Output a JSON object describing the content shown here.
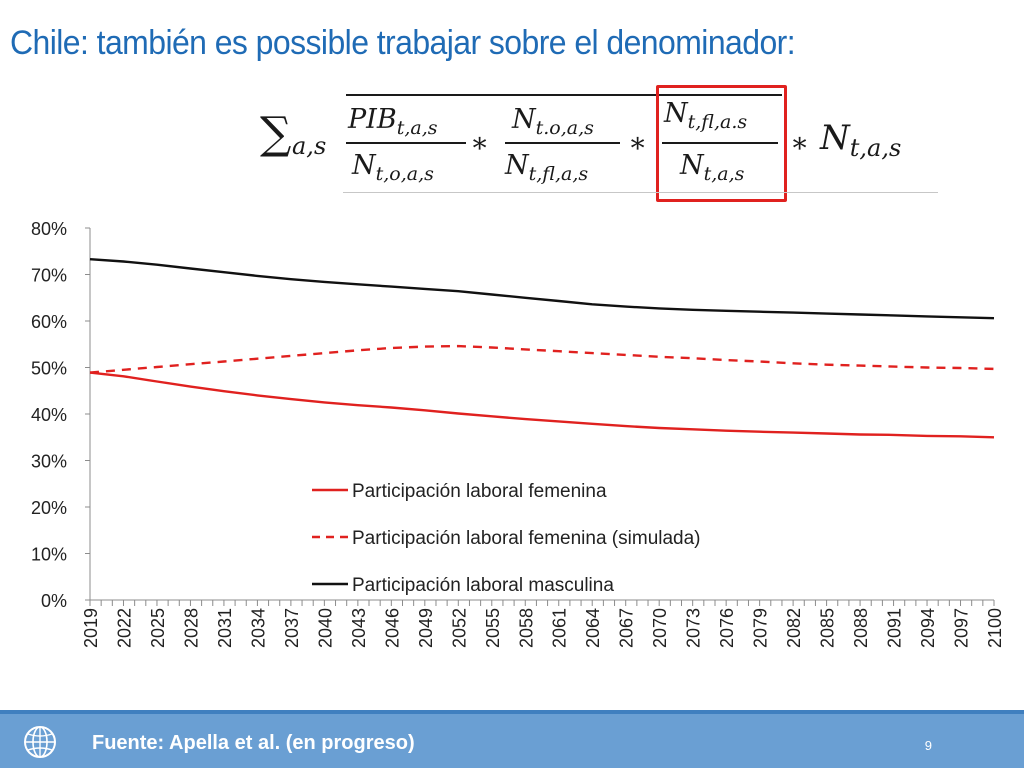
{
  "slide": {
    "title": "Chile: también es possible trabajar sobre el denominador:"
  },
  "formula": {
    "sigma": "∑",
    "sum_subscript": "a,s",
    "frac1_num_main": "PIB",
    "frac1_num_sub": "t,a,s",
    "frac1_den_main": "N",
    "frac1_den_sub": "t,o,a,s",
    "times": "∗",
    "frac2_num_main": "N",
    "frac2_num_sub": "t.o,a,s",
    "frac2_den_main": "N",
    "frac2_den_sub": "t,fl,a,s",
    "frac3_num_main": "N",
    "frac3_num_sub": "t,fl,a.s",
    "frac3_den_main": "N",
    "frac3_den_sub": "t,a,s",
    "last_main": "N",
    "last_sub": "t,a,s"
  },
  "chart_data": {
    "type": "line",
    "title": "",
    "xlabel": "",
    "ylabel": "",
    "x": [
      2019,
      2020,
      2021,
      2022,
      2023,
      2024,
      2025,
      2026,
      2027,
      2028,
      2029,
      2030,
      2031,
      2032,
      2033,
      2034,
      2035,
      2036,
      2037,
      2038,
      2039,
      2040,
      2041,
      2042,
      2043,
      2044,
      2045,
      2046,
      2047,
      2048,
      2049,
      2050,
      2051,
      2052,
      2053,
      2054,
      2055,
      2056,
      2057,
      2058,
      2059,
      2060,
      2061,
      2062,
      2063,
      2064,
      2065,
      2066,
      2067,
      2068,
      2069,
      2070,
      2071,
      2072,
      2073,
      2074,
      2075,
      2076,
      2077,
      2078,
      2079,
      2080,
      2081,
      2082,
      2083,
      2084,
      2085,
      2086,
      2087,
      2088,
      2089,
      2090,
      2091,
      2092,
      2093,
      2094,
      2095,
      2096,
      2097,
      2098,
      2099,
      2100
    ],
    "tick_labels": [
      "2019",
      "2022",
      "2025",
      "2028",
      "2031",
      "2034",
      "2037",
      "2040",
      "2043",
      "2046",
      "2049",
      "2052",
      "2055",
      "2058",
      "2061",
      "2064",
      "2067",
      "2070",
      "2073",
      "2076",
      "2079",
      "2082",
      "2085",
      "2088",
      "2091",
      "2094",
      "2097",
      "2100"
    ],
    "tick_years": [
      2019,
      2022,
      2025,
      2028,
      2031,
      2034,
      2037,
      2040,
      2043,
      2046,
      2049,
      2052,
      2055,
      2058,
      2061,
      2064,
      2067,
      2070,
      2073,
      2076,
      2079,
      2082,
      2085,
      2088,
      2091,
      2094,
      2097,
      2100
    ],
    "ylim": [
      0,
      0.8
    ],
    "yticks": [
      0,
      0.1,
      0.2,
      0.3,
      0.4,
      0.5,
      0.6,
      0.7,
      0.8
    ],
    "ytick_labels": [
      "0%",
      "10%",
      "20%",
      "30%",
      "40%",
      "50%",
      "60%",
      "70%",
      "80%"
    ],
    "grid": false,
    "legend_placement": "lower-center",
    "series": [
      {
        "name": "Participación laboral femenina",
        "color": "#e0211f",
        "style": "solid",
        "anchors": [
          [
            2019,
            0.489
          ],
          [
            2022,
            0.481
          ],
          [
            2025,
            0.47
          ],
          [
            2028,
            0.459
          ],
          [
            2031,
            0.449
          ],
          [
            2034,
            0.44
          ],
          [
            2037,
            0.432
          ],
          [
            2040,
            0.425
          ],
          [
            2043,
            0.419
          ],
          [
            2046,
            0.414
          ],
          [
            2049,
            0.408
          ],
          [
            2052,
            0.401
          ],
          [
            2055,
            0.395
          ],
          [
            2058,
            0.389
          ],
          [
            2061,
            0.384
          ],
          [
            2064,
            0.379
          ],
          [
            2067,
            0.374
          ],
          [
            2070,
            0.37
          ],
          [
            2073,
            0.367
          ],
          [
            2076,
            0.364
          ],
          [
            2079,
            0.362
          ],
          [
            2082,
            0.36
          ],
          [
            2085,
            0.358
          ],
          [
            2088,
            0.356
          ],
          [
            2091,
            0.355
          ],
          [
            2094,
            0.353
          ],
          [
            2097,
            0.352
          ],
          [
            2100,
            0.35
          ]
        ]
      },
      {
        "name": "Participación laboral femenina (simulada)",
        "color": "#e0211f",
        "style": "dashed",
        "anchors": [
          [
            2019,
            0.489
          ],
          [
            2022,
            0.495
          ],
          [
            2025,
            0.501
          ],
          [
            2028,
            0.507
          ],
          [
            2031,
            0.513
          ],
          [
            2034,
            0.519
          ],
          [
            2037,
            0.525
          ],
          [
            2040,
            0.531
          ],
          [
            2043,
            0.537
          ],
          [
            2046,
            0.542
          ],
          [
            2049,
            0.545
          ],
          [
            2052,
            0.546
          ],
          [
            2055,
            0.543
          ],
          [
            2058,
            0.539
          ],
          [
            2061,
            0.535
          ],
          [
            2064,
            0.531
          ],
          [
            2067,
            0.527
          ],
          [
            2070,
            0.523
          ],
          [
            2073,
            0.52
          ],
          [
            2076,
            0.516
          ],
          [
            2079,
            0.513
          ],
          [
            2082,
            0.509
          ],
          [
            2085,
            0.506
          ],
          [
            2088,
            0.504
          ],
          [
            2091,
            0.502
          ],
          [
            2094,
            0.5
          ],
          [
            2097,
            0.499
          ],
          [
            2100,
            0.497
          ]
        ]
      },
      {
        "name": "Participación laboral masculina",
        "color": "#111111",
        "style": "solid",
        "anchors": [
          [
            2019,
            0.733
          ],
          [
            2022,
            0.728
          ],
          [
            2025,
            0.721
          ],
          [
            2028,
            0.713
          ],
          [
            2031,
            0.705
          ],
          [
            2034,
            0.697
          ],
          [
            2037,
            0.69
          ],
          [
            2040,
            0.684
          ],
          [
            2043,
            0.679
          ],
          [
            2046,
            0.674
          ],
          [
            2049,
            0.669
          ],
          [
            2052,
            0.664
          ],
          [
            2055,
            0.657
          ],
          [
            2058,
            0.65
          ],
          [
            2061,
            0.643
          ],
          [
            2064,
            0.636
          ],
          [
            2067,
            0.631
          ],
          [
            2070,
            0.627
          ],
          [
            2073,
            0.624
          ],
          [
            2076,
            0.622
          ],
          [
            2079,
            0.62
          ],
          [
            2082,
            0.618
          ],
          [
            2085,
            0.616
          ],
          [
            2088,
            0.614
          ],
          [
            2091,
            0.612
          ],
          [
            2094,
            0.61
          ],
          [
            2097,
            0.608
          ],
          [
            2100,
            0.606
          ]
        ]
      }
    ]
  },
  "footer": {
    "source": "Fuente: Apella et al. (en progreso)",
    "page_number": "9",
    "logo_icon": "globe-icon"
  },
  "colors": {
    "title": "#1f6bb5",
    "footer_bg": "#6a9fd3",
    "highlight": "#e0211f"
  }
}
